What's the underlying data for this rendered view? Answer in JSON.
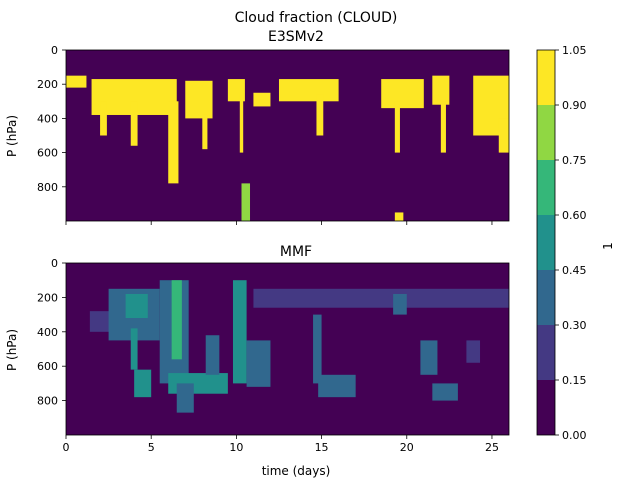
{
  "figure": {
    "suptitle": "Cloud fraction (CLOUD)"
  },
  "colormap": {
    "levels": [
      0.0,
      0.15,
      0.3,
      0.45,
      0.6,
      0.75,
      0.9,
      1.05
    ],
    "colors": [
      "#440154",
      "#443983",
      "#31688e",
      "#21918c",
      "#35b779",
      "#90d743",
      "#fde725"
    ]
  },
  "colorbar": {
    "label": "1",
    "ticks": [
      "0.00",
      "0.15",
      "0.30",
      "0.45",
      "0.60",
      "0.75",
      "0.90",
      "1.05"
    ]
  },
  "chart_data": [
    {
      "type": "heatmap",
      "title": "E3SMv2",
      "ylabel": "P (hPa)",
      "xlabel": "",
      "xlim": [
        0,
        26
      ],
      "ylim": [
        1000,
        0
      ],
      "y_inverted": true,
      "xticks": [
        0,
        5,
        10,
        15,
        20,
        25
      ],
      "xtick_labels_shown": false,
      "yticks": [
        0,
        200,
        400,
        600,
        800
      ],
      "ytick_labels": [
        "0",
        "200",
        "400",
        "600",
        "800"
      ],
      "features": [
        {
          "x": [
            0.0,
            1.2
          ],
          "p": [
            150,
            220
          ],
          "value": 0.95
        },
        {
          "x": [
            1.5,
            6.5
          ],
          "p": [
            170,
            380
          ],
          "value": 0.95
        },
        {
          "x": [
            2.0,
            2.4
          ],
          "p": [
            300,
            500
          ],
          "value": 0.9
        },
        {
          "x": [
            3.8,
            4.2
          ],
          "p": [
            300,
            560
          ],
          "value": 0.9
        },
        {
          "x": [
            6.0,
            6.6
          ],
          "p": [
            300,
            780
          ],
          "value": 0.95
        },
        {
          "x": [
            7.0,
            8.6
          ],
          "p": [
            180,
            400
          ],
          "value": 0.95
        },
        {
          "x": [
            8.0,
            8.3
          ],
          "p": [
            380,
            580
          ],
          "value": 0.9
        },
        {
          "x": [
            9.5,
            10.5
          ],
          "p": [
            170,
            300
          ],
          "value": 0.95
        },
        {
          "x": [
            10.2,
            10.4
          ],
          "p": [
            250,
            600
          ],
          "value": 0.9
        },
        {
          "x": [
            10.3,
            10.8
          ],
          "p": [
            780,
            1000
          ],
          "value": 0.8
        },
        {
          "x": [
            11.0,
            12.0
          ],
          "p": [
            250,
            330
          ],
          "value": 0.9
        },
        {
          "x": [
            12.5,
            16.0
          ],
          "p": [
            170,
            300
          ],
          "value": 0.95
        },
        {
          "x": [
            14.7,
            15.1
          ],
          "p": [
            260,
            500
          ],
          "value": 0.9
        },
        {
          "x": [
            18.5,
            21.0
          ],
          "p": [
            170,
            340
          ],
          "value": 0.95
        },
        {
          "x": [
            19.3,
            19.6
          ],
          "p": [
            300,
            600
          ],
          "value": 0.9
        },
        {
          "x": [
            21.5,
            22.5
          ],
          "p": [
            150,
            320
          ],
          "value": 0.95
        },
        {
          "x": [
            22.0,
            22.3
          ],
          "p": [
            300,
            600
          ],
          "value": 0.9
        },
        {
          "x": [
            23.9,
            26.0
          ],
          "p": [
            150,
            500
          ],
          "value": 0.95
        },
        {
          "x": [
            25.4,
            26.0
          ],
          "p": [
            400,
            600
          ],
          "value": 0.9
        },
        {
          "x": [
            19.3,
            19.8
          ],
          "p": [
            950,
            1000
          ],
          "value": 0.95
        }
      ]
    },
    {
      "type": "heatmap",
      "title": "MMF",
      "ylabel": "P (hPa)",
      "xlabel": "time (days)",
      "xlim": [
        0,
        26
      ],
      "ylim": [
        1000,
        0
      ],
      "y_inverted": true,
      "xticks": [
        0,
        5,
        10,
        15,
        20,
        25
      ],
      "xtick_labels": [
        "0",
        "5",
        "10",
        "15",
        "20",
        "25"
      ],
      "yticks": [
        0,
        200,
        400,
        600,
        800
      ],
      "ytick_labels": [
        "0",
        "200",
        "400",
        "600",
        "800"
      ],
      "features": [
        {
          "x": [
            1.4,
            2.8
          ],
          "p": [
            280,
            400
          ],
          "value": 0.25
        },
        {
          "x": [
            2.5,
            5.5
          ],
          "p": [
            150,
            450
          ],
          "value": 0.35
        },
        {
          "x": [
            3.5,
            4.8
          ],
          "p": [
            180,
            320
          ],
          "value": 0.55
        },
        {
          "x": [
            3.8,
            4.2
          ],
          "p": [
            380,
            620
          ],
          "value": 0.5
        },
        {
          "x": [
            4.0,
            5.0
          ],
          "p": [
            620,
            780
          ],
          "value": 0.45
        },
        {
          "x": [
            5.5,
            7.2
          ],
          "p": [
            100,
            700
          ],
          "value": 0.4
        },
        {
          "x": [
            6.2,
            6.8
          ],
          "p": [
            100,
            560
          ],
          "value": 0.6
        },
        {
          "x": [
            6.0,
            9.5
          ],
          "p": [
            640,
            760
          ],
          "value": 0.5
        },
        {
          "x": [
            6.5,
            7.5
          ],
          "p": [
            700,
            870
          ],
          "value": 0.35
        },
        {
          "x": [
            8.2,
            9.0
          ],
          "p": [
            420,
            650
          ],
          "value": 0.3
        },
        {
          "x": [
            9.8,
            10.6
          ],
          "p": [
            100,
            700
          ],
          "value": 0.45
        },
        {
          "x": [
            10.6,
            12.0
          ],
          "p": [
            450,
            720
          ],
          "value": 0.4
        },
        {
          "x": [
            11.0,
            26.0
          ],
          "p": [
            150,
            260
          ],
          "value": 0.2
        },
        {
          "x": [
            14.5,
            15.0
          ],
          "p": [
            300,
            700
          ],
          "value": 0.3
        },
        {
          "x": [
            14.8,
            17.0
          ],
          "p": [
            650,
            780
          ],
          "value": 0.4
        },
        {
          "x": [
            19.2,
            20.0
          ],
          "p": [
            180,
            300
          ],
          "value": 0.3
        },
        {
          "x": [
            20.8,
            21.8
          ],
          "p": [
            450,
            650
          ],
          "value": 0.3
        },
        {
          "x": [
            21.5,
            23.0
          ],
          "p": [
            700,
            800
          ],
          "value": 0.4
        },
        {
          "x": [
            23.5,
            24.3
          ],
          "p": [
            450,
            580
          ],
          "value": 0.2
        }
      ]
    }
  ]
}
